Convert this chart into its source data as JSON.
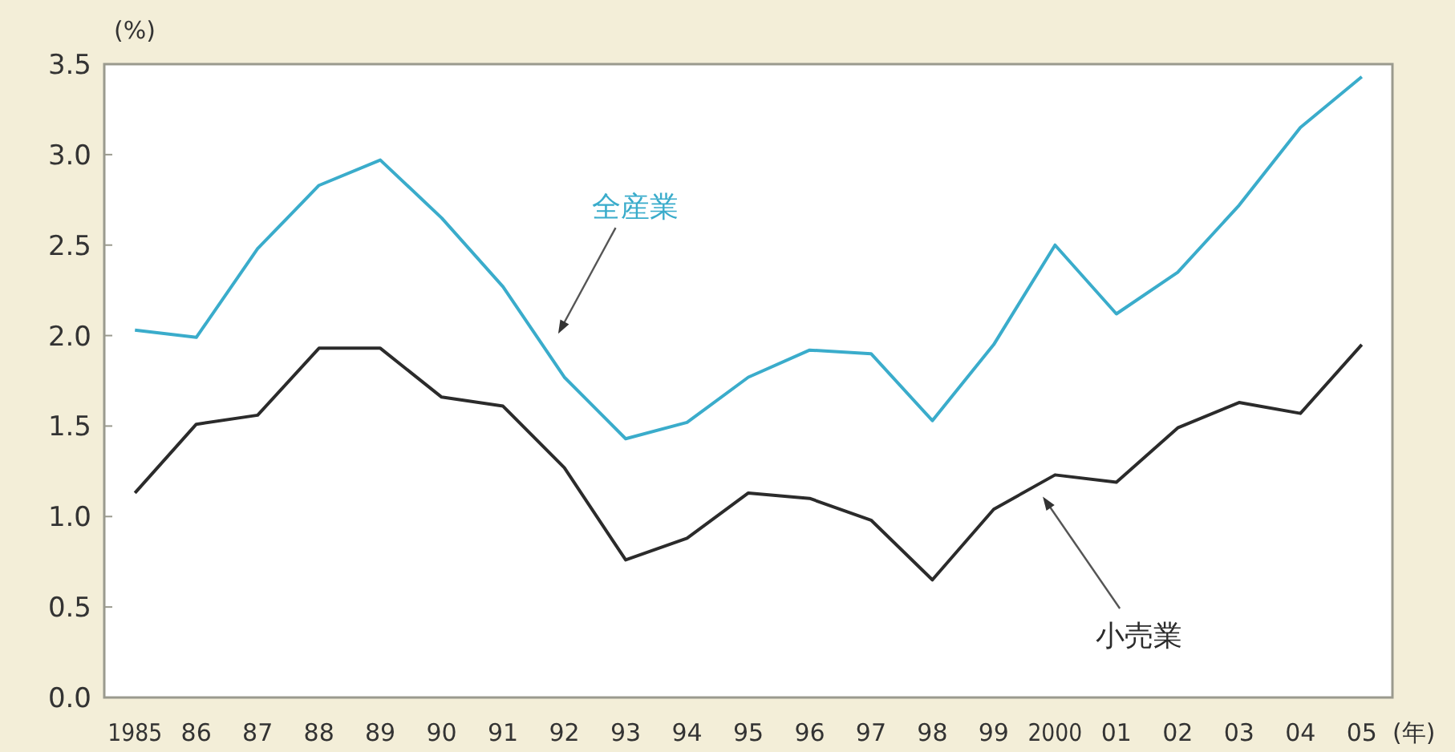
{
  "chart_data": {
    "type": "line",
    "ylabel": "(%)",
    "xlabel": "(年)",
    "categories": [
      "1985",
      "86",
      "87",
      "88",
      "89",
      "90",
      "91",
      "92",
      "93",
      "94",
      "95",
      "96",
      "97",
      "98",
      "99",
      "2000",
      "01",
      "02",
      "03",
      "04",
      "05"
    ],
    "ylim": [
      0,
      3.5
    ],
    "yticks": [
      {
        "value": 0,
        "label": "0.0"
      },
      {
        "value": 0.5,
        "label": "0.5"
      },
      {
        "value": 1,
        "label": "1.0"
      },
      {
        "value": 1.5,
        "label": "1.5"
      },
      {
        "value": 2,
        "label": "2.0"
      },
      {
        "value": 2.5,
        "label": "2.5"
      },
      {
        "value": 3,
        "label": "3.0"
      },
      {
        "value": 3.5,
        "label": "3.5"
      }
    ],
    "grid": false,
    "legend": false,
    "marker": "none",
    "line_style": "solid",
    "series": [
      {
        "name": "全産業",
        "color": "#3aaccb",
        "values": [
          2.03,
          1.99,
          2.48,
          2.83,
          2.97,
          2.65,
          2.27,
          1.77,
          1.43,
          1.52,
          1.77,
          1.92,
          1.9,
          1.53,
          1.95,
          2.5,
          2.12,
          2.35,
          2.72,
          3.15,
          3.43
        ]
      },
      {
        "name": "小売業",
        "color": "#2b2b2b",
        "values": [
          1.13,
          1.51,
          1.56,
          1.93,
          1.93,
          1.66,
          1.61,
          1.27,
          0.76,
          0.88,
          1.13,
          1.1,
          0.98,
          0.65,
          1.04,
          1.23,
          1.19,
          1.49,
          1.63,
          1.57,
          1.95
        ]
      }
    ]
  }
}
